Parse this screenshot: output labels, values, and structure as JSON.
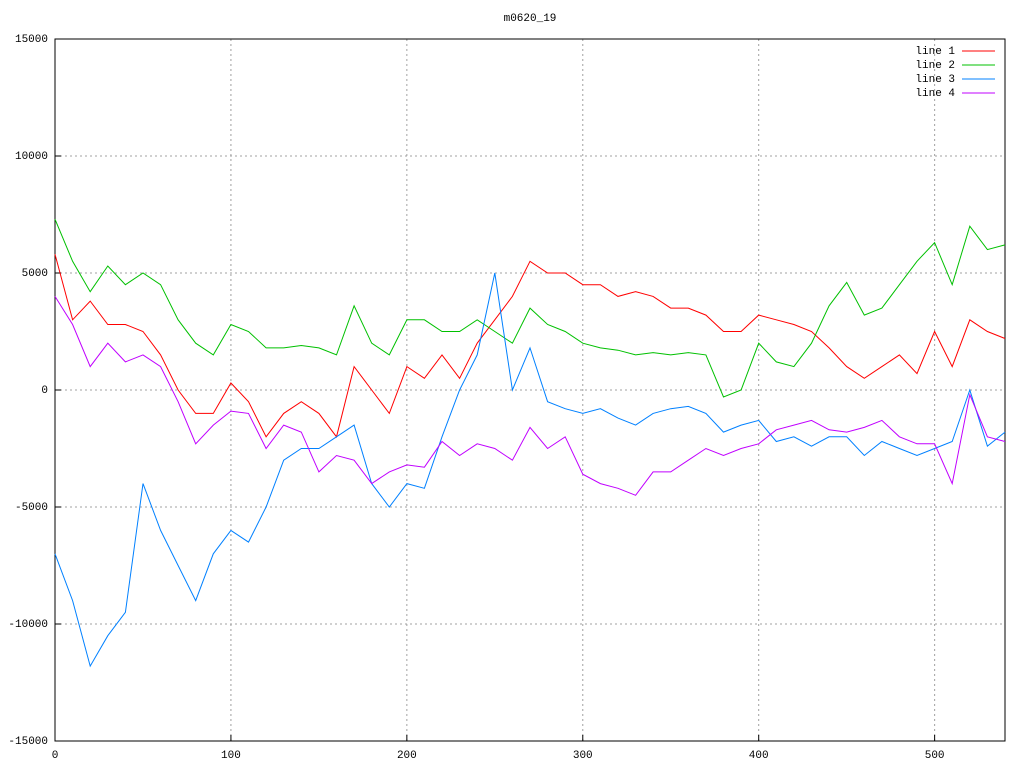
{
  "chart_data": {
    "type": "line",
    "title": "m0620_19",
    "x": [
      0,
      10,
      20,
      30,
      40,
      50,
      60,
      70,
      80,
      90,
      100,
      110,
      120,
      130,
      140,
      150,
      160,
      170,
      180,
      190,
      200,
      210,
      220,
      230,
      240,
      250,
      260,
      270,
      280,
      290,
      300,
      310,
      320,
      330,
      340,
      350,
      360,
      370,
      380,
      390,
      400,
      410,
      420,
      430,
      440,
      450,
      460,
      470,
      480,
      490,
      500,
      510,
      520,
      530,
      540
    ],
    "series": [
      {
        "name": "line 1",
        "color": "#ff0000",
        "values": [
          5800,
          3000,
          3800,
          2800,
          2800,
          2500,
          1500,
          0,
          -1000,
          -1000,
          300,
          -500,
          -2000,
          -1000,
          -500,
          -1000,
          -2000,
          1000,
          0,
          -1000,
          1000,
          500,
          1500,
          500,
          2000,
          3000,
          4000,
          5500,
          5000,
          5000,
          4500,
          4500,
          4000,
          4200,
          4000,
          3500,
          3500,
          3200,
          2500,
          2500,
          3200,
          3000,
          2800,
          2500,
          1800,
          1000,
          500,
          1000,
          1500,
          700,
          2500,
          1000,
          3000,
          2500,
          2200
        ]
      },
      {
        "name": "line 2",
        "color": "#00c000",
        "values": [
          7300,
          5500,
          4200,
          5300,
          4500,
          5000,
          4500,
          3000,
          2000,
          1500,
          2800,
          2500,
          1800,
          1800,
          1900,
          1800,
          1500,
          3600,
          2000,
          1500,
          3000,
          3000,
          2500,
          2500,
          3000,
          2500,
          2000,
          3500,
          2800,
          2500,
          2000,
          1800,
          1700,
          1500,
          1600,
          1500,
          1600,
          1500,
          -300,
          0,
          2000,
          1200,
          1000,
          2000,
          3600,
          4600,
          3200,
          3500,
          4500,
          5500,
          6300,
          4500,
          7000,
          6000,
          6200
        ]
      },
      {
        "name": "line 3",
        "color": "#0080ff",
        "values": [
          -7000,
          -9000,
          -11800,
          -10500,
          -9500,
          -4000,
          -6000,
          -7500,
          -9000,
          -7000,
          -6000,
          -6500,
          -5000,
          -3000,
          -2500,
          -2500,
          -2000,
          -1500,
          -4000,
          -5000,
          -4000,
          -4200,
          -2000,
          0,
          1500,
          5000,
          0,
          1800,
          -500,
          -800,
          -1000,
          -800,
          -1200,
          -1500,
          -1000,
          -800,
          -700,
          -1000,
          -1800,
          -1500,
          -1300,
          -2200,
          -2000,
          -2400,
          -2000,
          -2000,
          -2800,
          -2200,
          -2500,
          -2800,
          -2500,
          -2200,
          0,
          -2400,
          -1800
        ]
      },
      {
        "name": "line 4",
        "color": "#c000ff",
        "values": [
          4000,
          2800,
          1000,
          2000,
          1200,
          1500,
          1000,
          -500,
          -2300,
          -1500,
          -900,
          -1000,
          -2500,
          -1500,
          -1800,
          -3500,
          -2800,
          -3000,
          -4000,
          -3500,
          -3200,
          -3300,
          -2200,
          -2800,
          -2300,
          -2500,
          -3000,
          -1600,
          -2500,
          -2000,
          -3600,
          -4000,
          -4200,
          -4500,
          -3500,
          -3500,
          -3000,
          -2500,
          -2800,
          -2500,
          -2300,
          -1700,
          -1500,
          -1300,
          -1700,
          -1800,
          -1600,
          -1300,
          -2000,
          -2300,
          -2300,
          -4000,
          -200,
          -2000,
          -2200
        ]
      }
    ],
    "xlim": [
      0,
      540
    ],
    "xticks": [
      0,
      100,
      200,
      300,
      400,
      500
    ],
    "ylim": [
      -15000,
      15000
    ],
    "yticks": [
      -15000,
      -10000,
      -5000,
      0,
      5000,
      10000,
      15000
    ],
    "grid": true,
    "legend": "top-right"
  }
}
